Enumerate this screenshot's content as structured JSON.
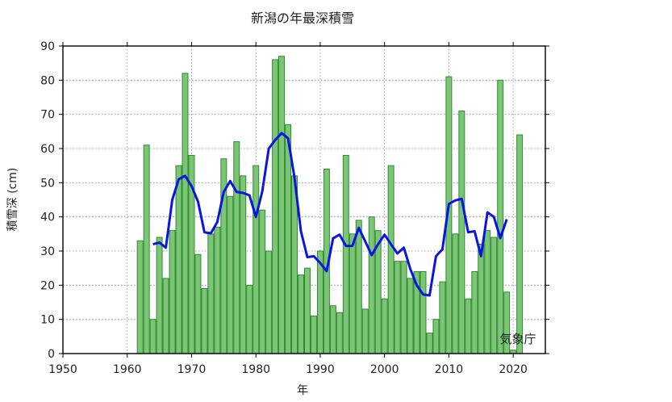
{
  "chart_data": {
    "type": "bar",
    "title": "新潟の年最深積雪",
    "xlabel": "年",
    "ylabel": "積雪深 (cm)",
    "credit": "気象庁",
    "xlim": [
      1950,
      2025
    ],
    "ylim": [
      0,
      90
    ],
    "x_ticks": [
      1950,
      1960,
      1970,
      1980,
      1990,
      2000,
      2010,
      2020
    ],
    "y_ticks": [
      0,
      10,
      20,
      30,
      40,
      50,
      60,
      70,
      80,
      90
    ],
    "grid": true,
    "colors": {
      "bar_fill": "#7dc576",
      "bar_stroke": "#2e8b2e",
      "line": "#0a14e6"
    },
    "series": [
      {
        "type": "bar",
        "x": [
          1962,
          1963,
          1964,
          1965,
          1966,
          1967,
          1968,
          1969,
          1970,
          1971,
          1972,
          1973,
          1974,
          1975,
          1976,
          1977,
          1978,
          1979,
          1980,
          1981,
          1982,
          1983,
          1984,
          1985,
          1986,
          1987,
          1988,
          1989,
          1990,
          1991,
          1992,
          1993,
          1994,
          1995,
          1996,
          1997,
          1998,
          1999,
          2000,
          2001,
          2002,
          2003,
          2004,
          2005,
          2006,
          2007,
          2008,
          2009,
          2010,
          2011,
          2012,
          2013,
          2014,
          2015,
          2016,
          2017,
          2018,
          2019,
          2020,
          2021
        ],
        "values": [
          33,
          61,
          10,
          34,
          22,
          36,
          55,
          82,
          58,
          29,
          19,
          35,
          37,
          57,
          46,
          62,
          52,
          20,
          55,
          42,
          30,
          86,
          87,
          67,
          52,
          23,
          25,
          11,
          30,
          54,
          14,
          12,
          58,
          35,
          39,
          13,
          40,
          36,
          16,
          55,
          27,
          27,
          22,
          24,
          24,
          6,
          10,
          21,
          81,
          35,
          71,
          16,
          24,
          32,
          36,
          34,
          80,
          18,
          1,
          64
        ]
      },
      {
        "type": "line",
        "x": [
          1964,
          1965,
          1966,
          1967,
          1968,
          1969,
          1970,
          1971,
          1972,
          1973,
          1974,
          1975,
          1976,
          1977,
          1978,
          1979,
          1980,
          1981,
          1982,
          1983,
          1984,
          1985,
          1986,
          1987,
          1988,
          1989,
          1990,
          1991,
          1992,
          1993,
          1994,
          1995,
          1996,
          1997,
          1998,
          1999,
          2000,
          2001,
          2002,
          2003,
          2004,
          2005,
          2006,
          2007,
          2008,
          2009,
          2010,
          2011,
          2012,
          2013,
          2014,
          2015,
          2016,
          2017,
          2018,
          2019
        ],
        "values": [
          32,
          32.5,
          31,
          45,
          51,
          52,
          49,
          44.5,
          35.5,
          35.2,
          38.5,
          47.3,
          50.5,
          47.3,
          47,
          46.3,
          40,
          47.5,
          60,
          62.5,
          64.5,
          63,
          51.5,
          35.8,
          28.2,
          28.5,
          26.5,
          24.1,
          33.7,
          34.8,
          31.5,
          31.5,
          36.8,
          32.8,
          28.8,
          32,
          34.8,
          32,
          29.3,
          31,
          24.8,
          20,
          17.3,
          17,
          28.5,
          30.5,
          43.8,
          44.8,
          45.3,
          35.5,
          35.8,
          28.5,
          41.3,
          40,
          33.8,
          39.3
        ]
      }
    ]
  }
}
